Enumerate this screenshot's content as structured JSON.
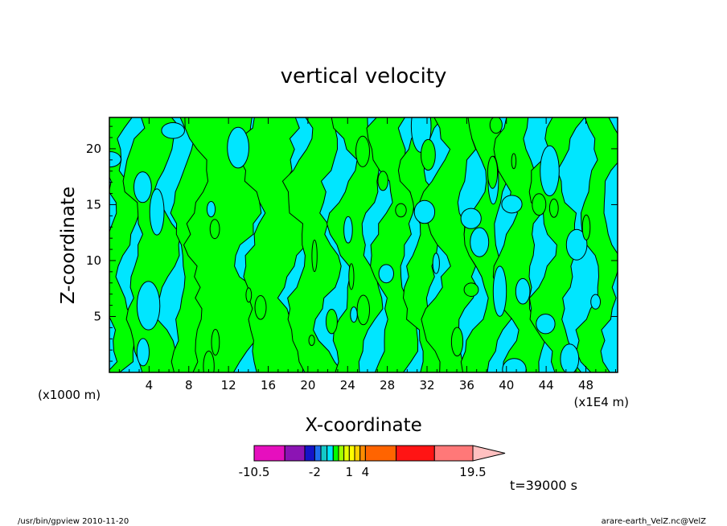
{
  "chart_data": {
    "type": "heatmap",
    "title": "vertical velocity",
    "xlabel": "X-coordinate",
    "ylabel": "Z-coordinate",
    "x_unit_left": "(x1000 m)",
    "x_unit_right": "(x1E4 m)",
    "xlim": [
      0,
      51.2
    ],
    "ylim": [
      0,
      22.8
    ],
    "x_ticks": [
      4,
      8,
      12,
      16,
      20,
      24,
      28,
      32,
      36,
      40,
      44,
      48
    ],
    "y_ticks": [
      5,
      10,
      15,
      20
    ],
    "colorbar": {
      "levels": [
        -10.5,
        -6,
        -3,
        -2,
        -1.5,
        -1,
        -0.5,
        0,
        0.5,
        1,
        1.5,
        2,
        4,
        7.5,
        11.5,
        15.5,
        19.5
      ],
      "colors": [
        "#e60fbe",
        "#8c14b4",
        "#1414c8",
        "#1e6ef0",
        "#14c8c8",
        "#00e6ff",
        "#00ff00",
        "#a0ff00",
        "#e6ff00",
        "#ffff00",
        "#ffd200",
        "#ff8c00",
        "#ff6400",
        "#ff1414",
        "#ff7878"
      ],
      "labels": [
        "-10.5",
        "-2",
        "1",
        "4",
        "19.5"
      ],
      "label_values": [
        -10.5,
        -2,
        1,
        4,
        19.5
      ]
    },
    "field_colors": {
      "negative": "#00e6ff",
      "positive": "#00ff00",
      "contour": "#000000"
    },
    "time_label": "t=39000 s"
  },
  "footer": {
    "left": "/usr/bin/gpview   2010-11-20",
    "right": "arare-earth_VelZ.nc@VelZ"
  }
}
